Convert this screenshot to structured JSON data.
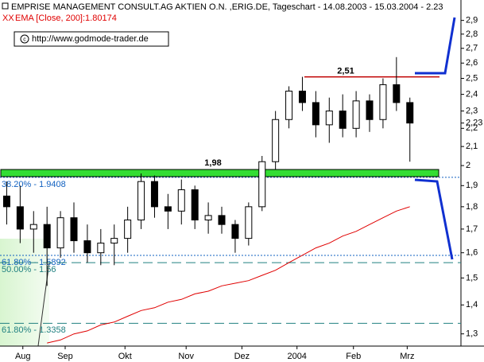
{
  "chart_data": {
    "type": "candlestick",
    "title": "EMPRISE MANAGEMENT CONSULT.AG AKTIEN O.N. ,ERIG.DE, Tageschart - 14.08.2003 - 15.03.2004 - 2.23",
    "indicator_label": "EMA [Close, 200]:1.80174",
    "copyright": "http://www.godmode-trader.de",
    "log_scale": true,
    "ylim": [
      1.26,
      3.0
    ],
    "yticks": [
      {
        "value": 2.9,
        "label": "2,9"
      },
      {
        "value": 2.8,
        "label": "2,8"
      },
      {
        "value": 2.7,
        "label": "2,7"
      },
      {
        "value": 2.6,
        "label": "2,6"
      },
      {
        "value": 2.5,
        "label": "2,5"
      },
      {
        "value": 2.4,
        "label": "2,4"
      },
      {
        "value": 2.3,
        "label": "2,3"
      },
      {
        "value": 2.2,
        "label": "2,2"
      },
      {
        "value": 2.1,
        "label": "2,1"
      },
      2,
      {
        "value": 1.9,
        "label": "1,9"
      },
      {
        "value": 1.8,
        "label": "1,8"
      },
      {
        "value": 1.7,
        "label": "1,7"
      },
      {
        "value": 1.6,
        "label": "1,6"
      },
      {
        "value": 1.5,
        "label": "1,5"
      },
      {
        "value": 1.4,
        "label": "1,4"
      },
      {
        "value": 1.3,
        "label": "1,3"
      }
    ],
    "last_price": {
      "value": 2.23,
      "label": "2,23"
    },
    "xlim": [
      -0.5,
      33.8
    ],
    "xticks": [
      {
        "value": 1.2,
        "label": "Aug"
      },
      {
        "value": 4.35,
        "label": "Sep"
      },
      {
        "value": 8.8,
        "label": "Okt"
      },
      {
        "value": 13.35,
        "label": "Nov"
      },
      {
        "value": 17.5,
        "label": "Dez"
      },
      {
        "value": 21.6,
        "label": "2004"
      },
      {
        "value": 25.8,
        "label": "Feb"
      },
      {
        "value": 29.8,
        "label": "Mrz"
      }
    ],
    "open": [
      1.85,
      1.8,
      1.7,
      1.72,
      1.62,
      1.75,
      1.65,
      1.6,
      1.64,
      1.66,
      1.74,
      1.92,
      1.8,
      1.78,
      1.88,
      1.74,
      1.76,
      1.72,
      1.66,
      1.8,
      2.02,
      2.25,
      2.42,
      2.35,
      2.22,
      2.3,
      2.2,
      2.36,
      2.25,
      2.46,
      2.35
    ],
    "high": [
      1.92,
      1.9,
      1.78,
      1.8,
      1.78,
      1.82,
      1.72,
      1.7,
      1.72,
      1.8,
      1.96,
      1.95,
      1.86,
      1.93,
      1.9,
      1.82,
      1.8,
      1.74,
      1.82,
      2.05,
      2.3,
      2.45,
      2.51,
      2.42,
      2.38,
      2.4,
      2.42,
      2.4,
      2.5,
      2.64,
      2.38
    ],
    "low": [
      1.72,
      1.64,
      1.6,
      1.47,
      1.58,
      1.6,
      1.56,
      1.55,
      1.55,
      1.6,
      1.7,
      1.75,
      1.7,
      1.72,
      1.7,
      1.68,
      1.68,
      1.6,
      1.63,
      1.78,
      1.98,
      2.2,
      2.3,
      2.15,
      2.12,
      2.15,
      2.15,
      2.18,
      2.2,
      2.3,
      2.02
    ],
    "close": [
      1.8,
      1.7,
      1.72,
      1.62,
      1.75,
      1.65,
      1.6,
      1.64,
      1.66,
      1.74,
      1.92,
      1.8,
      1.78,
      1.88,
      1.74,
      1.76,
      1.72,
      1.66,
      1.8,
      2.02,
      2.25,
      2.42,
      2.35,
      2.22,
      2.3,
      2.2,
      2.36,
      2.25,
      2.46,
      2.35,
      2.23
    ],
    "ema": {
      "color": "#e00000",
      "values": [
        null,
        null,
        null,
        1.27,
        1.28,
        1.3,
        1.31,
        1.33,
        1.34,
        1.36,
        1.38,
        1.39,
        1.41,
        1.42,
        1.44,
        1.45,
        1.47,
        1.48,
        1.49,
        1.51,
        1.53,
        1.56,
        1.59,
        1.62,
        1.64,
        1.67,
        1.69,
        1.72,
        1.75,
        1.78,
        1.8
      ]
    },
    "resistance": {
      "value": 2.51,
      "label": "2,51",
      "color": "#c00000"
    },
    "support": {
      "value": 1.98,
      "label": "1,98",
      "color": "#33dd33"
    },
    "levels": [
      {
        "value": 1.9408,
        "label": "38.20% - 1.9408",
        "style": "dotted",
        "color": "#1060c0"
      },
      {
        "value": 1.5892,
        "label": "61.80% - 1.5892",
        "style": "dotted",
        "color": "#1060c0"
      },
      {
        "value": 1.56,
        "label": "50.00% - 1.56",
        "style": "dashed",
        "color": "#208080"
      },
      {
        "value": 1.3358,
        "label": "61.80% - 1.3358",
        "style": "dashed",
        "color": "#208080"
      }
    ]
  }
}
